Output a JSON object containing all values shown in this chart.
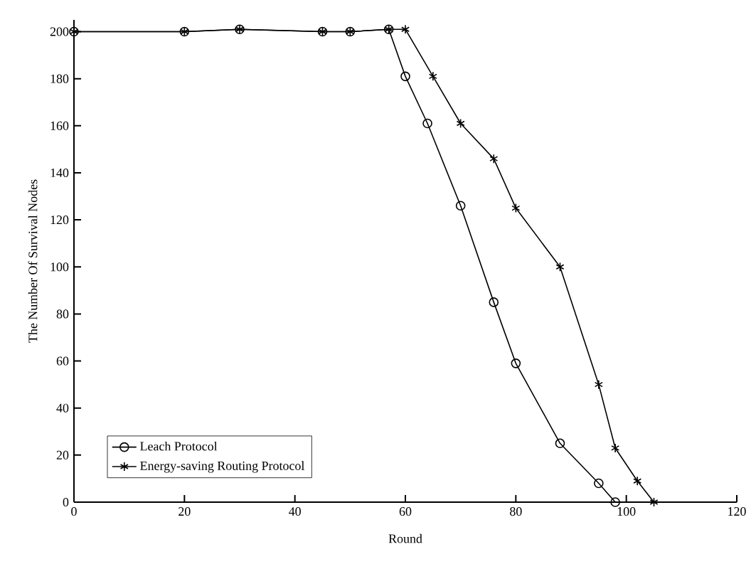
{
  "chart_data": {
    "type": "line",
    "xlabel": "Round",
    "ylabel": "The Number Of Survival Nodes",
    "xlim": [
      0,
      120
    ],
    "xticks": [
      0,
      20,
      40,
      60,
      80,
      100,
      120
    ],
    "ylim": [
      0,
      205
    ],
    "yticks": [
      0,
      20,
      40,
      60,
      80,
      100,
      120,
      140,
      160,
      180,
      200
    ],
    "grid": false,
    "legend": "bottom left",
    "line_style": "solid",
    "series": [
      {
        "name": "Leach Protocol",
        "color": "#000000",
        "marker": "circle",
        "x": [
          0,
          20,
          30,
          45,
          50,
          57,
          60,
          64,
          70,
          76,
          80,
          88,
          95,
          98
        ],
        "values": [
          200,
          200,
          201,
          200,
          200,
          201,
          181,
          161,
          126,
          85,
          59,
          25,
          8,
          0
        ]
      },
      {
        "name": "Energy-saving Routing Protocol",
        "color": "#000000",
        "marker": "cross",
        "x": [
          0,
          20,
          30,
          45,
          50,
          57,
          60,
          65,
          70,
          76,
          80,
          88,
          95,
          98,
          102,
          105
        ],
        "values": [
          200,
          200,
          201,
          200,
          200,
          201,
          201,
          181,
          161,
          146,
          125,
          100,
          50,
          23,
          9,
          0
        ]
      }
    ]
  }
}
